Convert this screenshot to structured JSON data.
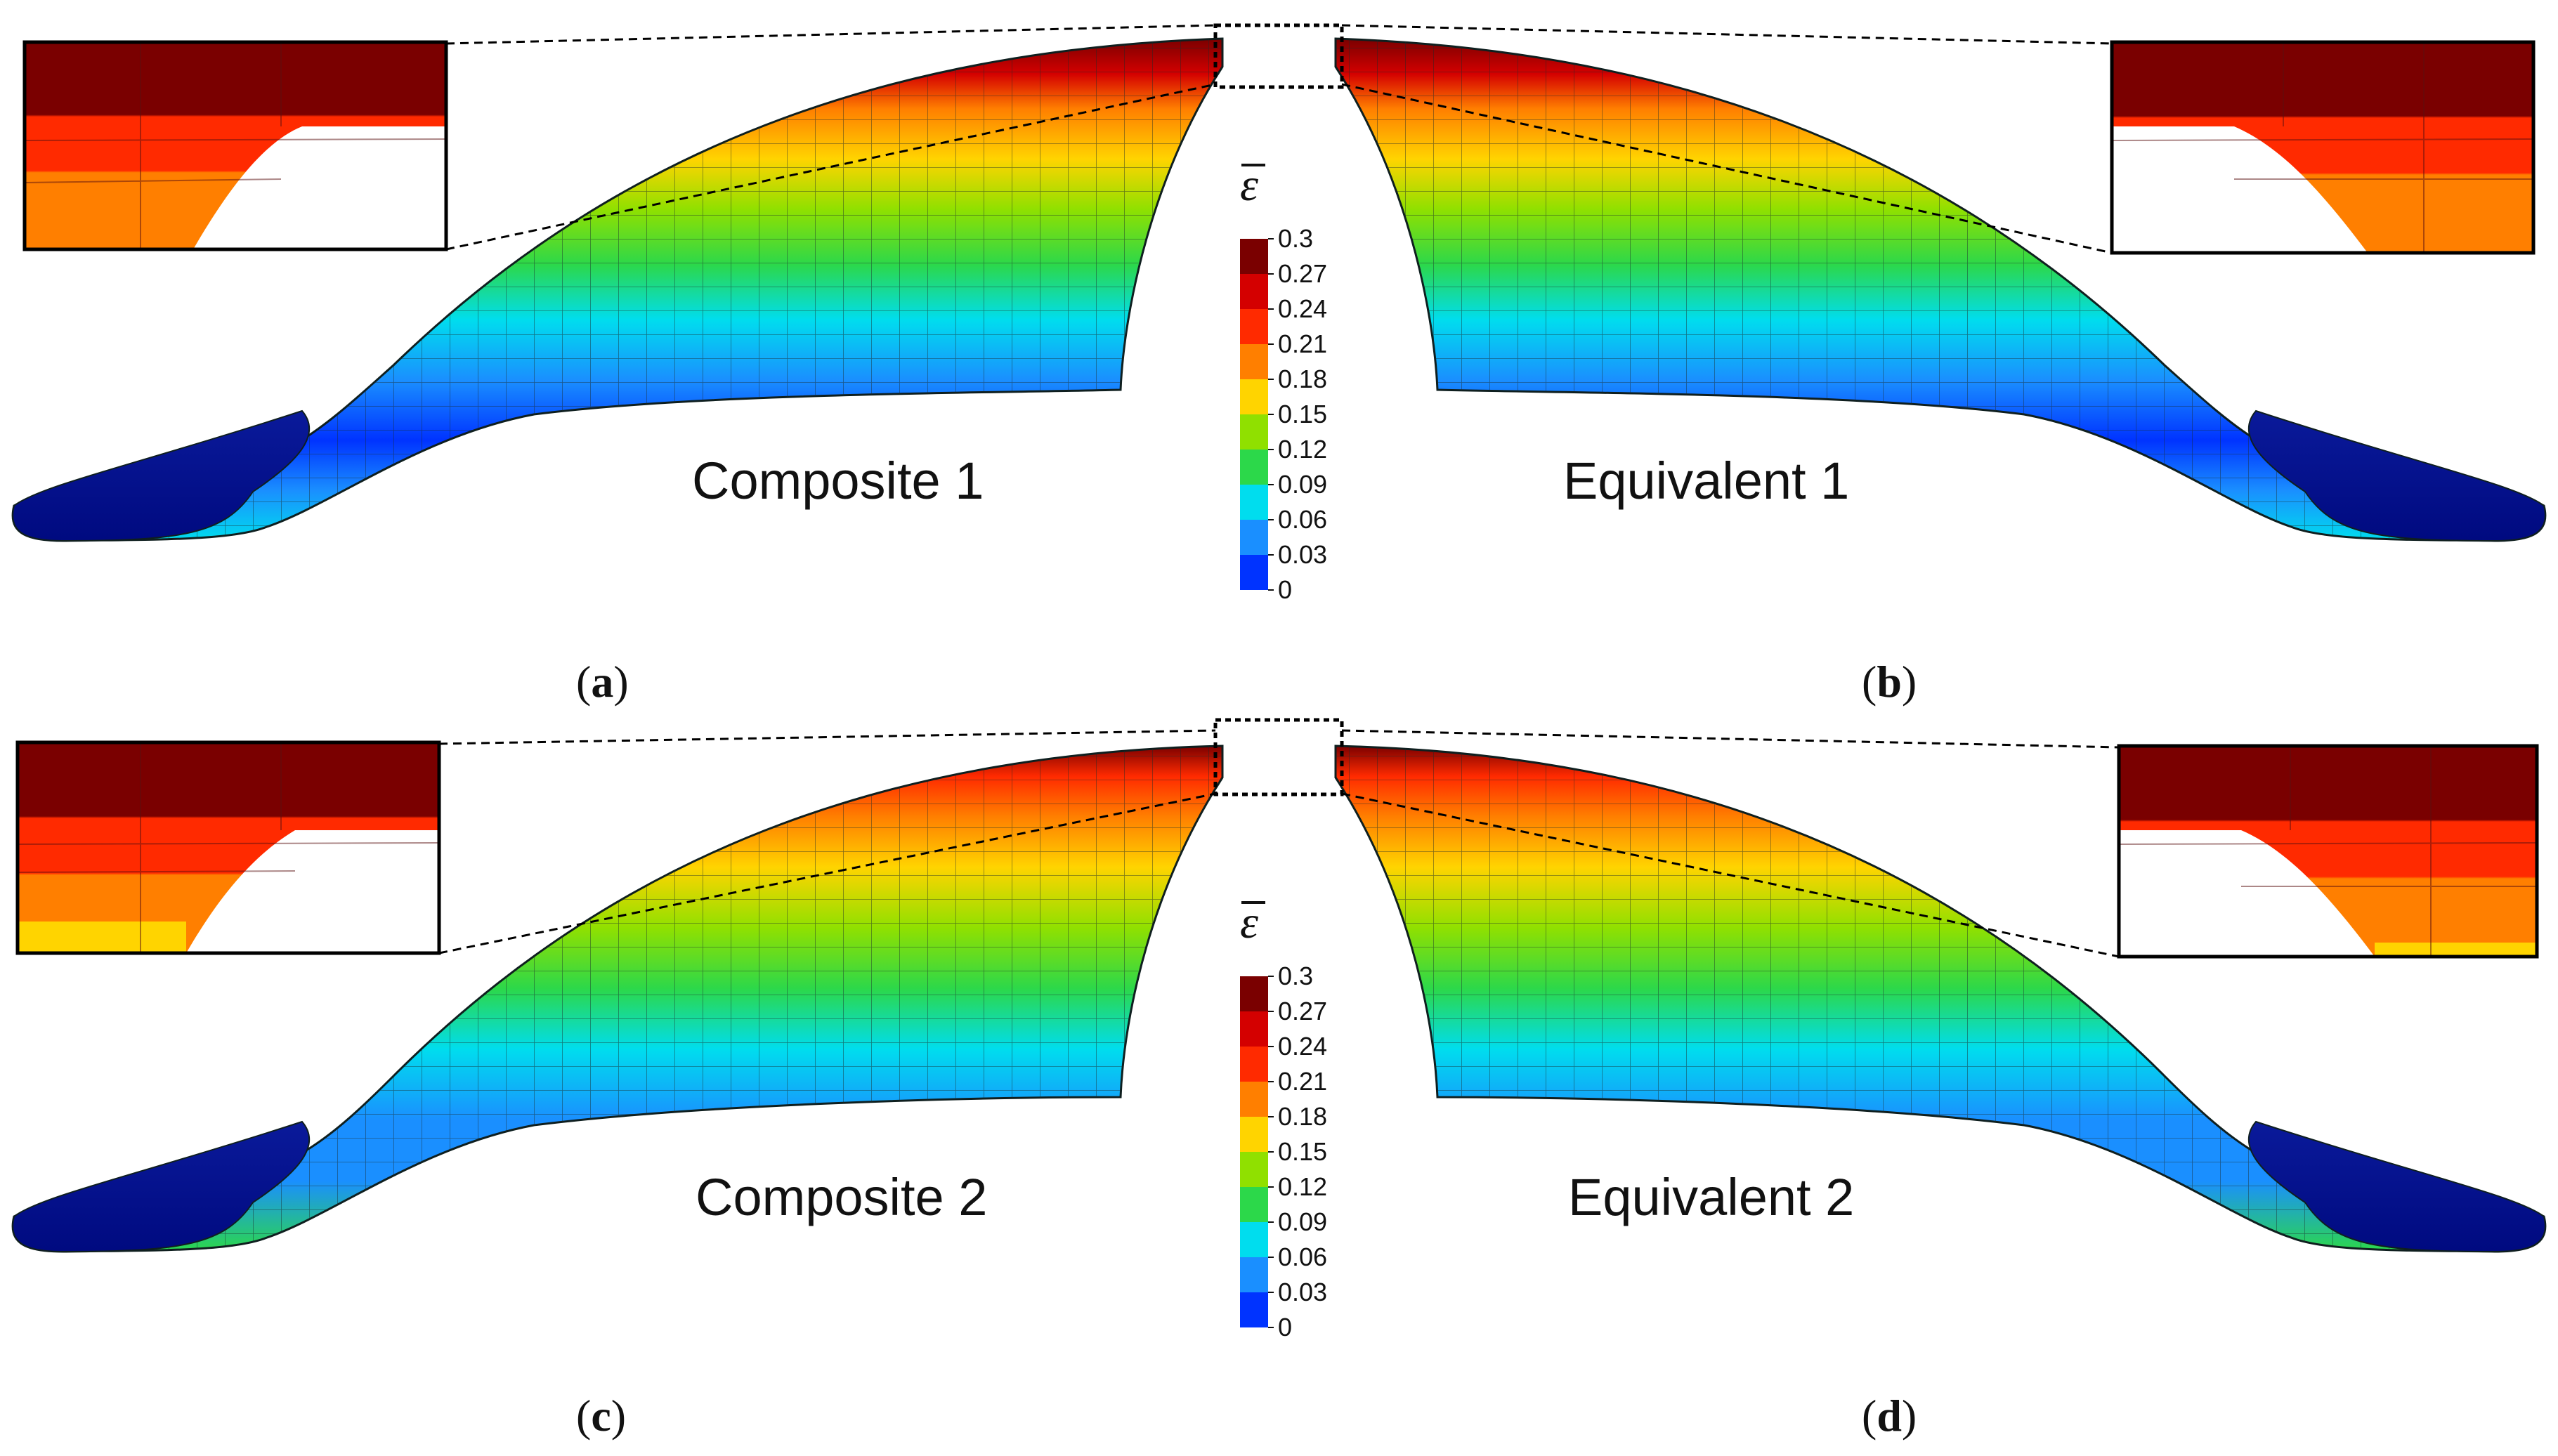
{
  "panels": [
    {
      "id": "a",
      "title": "Composite 1",
      "letter": "a"
    },
    {
      "id": "b",
      "title": "Equivalent 1",
      "letter": "b"
    },
    {
      "id": "c",
      "title": "Composite 2",
      "letter": "c"
    },
    {
      "id": "d",
      "title": "Equivalent 2",
      "letter": "d"
    }
  ],
  "colorbar": {
    "symbol": "ε",
    "ticks": [
      "0.3",
      "0.27",
      "0.24",
      "0.21",
      "0.18",
      "0.15",
      "0.12",
      "0.09",
      "0.06",
      "0.03",
      "0"
    ],
    "colors": [
      "#7a0000",
      "#d40000",
      "#ff2a00",
      "#ff7f00",
      "#ffd400",
      "#90e000",
      "#2cd84a",
      "#00ddee",
      "#1a8fff",
      "#0033ff",
      "#000a80"
    ]
  }
}
